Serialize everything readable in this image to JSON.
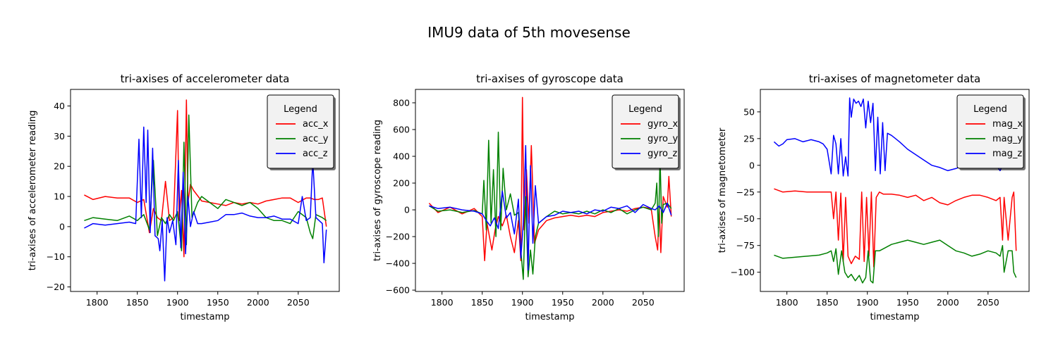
{
  "figure": {
    "title": "IMU9 data of 5th movesense"
  },
  "chart_data": [
    {
      "type": "line",
      "title": "tri-axises of accelerometer data",
      "xlabel": "timestamp",
      "ylabel": "tri-axises of accelerometer reading",
      "xlim": [
        1767,
        2101
      ],
      "ylim": [
        -21.5,
        45.5
      ],
      "xticks": [
        1800,
        1850,
        1900,
        1950,
        2000,
        2050
      ],
      "yticks": [
        -20,
        -10,
        0,
        10,
        20,
        30,
        40
      ],
      "legend": {
        "title": "Legend",
        "position": "upper-right"
      },
      "series": [
        {
          "name": "acc_x",
          "color": "#ff0000",
          "x": [
            1784,
            1795,
            1810,
            1825,
            1840,
            1850,
            1858,
            1865,
            1870,
            1875,
            1880,
            1885,
            1890,
            1895,
            1900,
            1902,
            1905,
            1908,
            1911,
            1913,
            1916,
            1920,
            1930,
            1940,
            1950,
            1960,
            1970,
            1980,
            1990,
            2000,
            2010,
            2020,
            2030,
            2040,
            2050,
            2060,
            2065,
            2070,
            2075,
            2080,
            2085
          ],
          "y": [
            10.5,
            9,
            10,
            9.5,
            9.5,
            8,
            9,
            -2,
            6,
            3,
            2,
            15,
            2,
            3,
            38.5,
            2,
            12,
            -10,
            42,
            8,
            14,
            12,
            8.5,
            8,
            7.5,
            7,
            8,
            7.5,
            8,
            7.5,
            8.5,
            9,
            9.5,
            9.5,
            8,
            9.5,
            9.5,
            9,
            9,
            9.5,
            0
          ]
        },
        {
          "name": "acc_y",
          "color": "#008000",
          "x": [
            1784,
            1795,
            1810,
            1825,
            1840,
            1850,
            1858,
            1865,
            1870,
            1875,
            1880,
            1885,
            1890,
            1895,
            1900,
            1905,
            1908,
            1911,
            1914,
            1918,
            1925,
            1930,
            1940,
            1950,
            1960,
            1970,
            1980,
            1990,
            2000,
            2010,
            2020,
            2030,
            2040,
            2050,
            2060,
            2065,
            2068,
            2072,
            2080,
            2085
          ],
          "y": [
            2,
            3,
            2.5,
            2,
            3.5,
            2,
            4,
            -1,
            22,
            -3,
            3,
            1,
            4,
            2,
            5,
            -8,
            28,
            -6,
            37,
            3,
            8,
            10,
            8,
            6,
            9,
            8,
            7,
            8,
            6,
            3,
            2,
            2,
            1,
            5,
            3,
            -2,
            -4,
            4,
            3,
            2
          ]
        },
        {
          "name": "acc_z",
          "color": "#0000ff",
          "x": [
            1784,
            1795,
            1810,
            1825,
            1840,
            1848,
            1852,
            1855,
            1858,
            1861,
            1863,
            1866,
            1869,
            1872,
            1876,
            1878,
            1881,
            1884,
            1887,
            1890,
            1894,
            1898,
            1901,
            1904,
            1907,
            1910,
            1913,
            1916,
            1920,
            1925,
            1930,
            1940,
            1950,
            1960,
            1970,
            1980,
            1990,
            2000,
            2010,
            2020,
            2030,
            2040,
            2050,
            2055,
            2060,
            2065,
            2068,
            2072,
            2080,
            2082,
            2085
          ],
          "y": [
            -0.5,
            1,
            0.5,
            1,
            1.5,
            1,
            29,
            3,
            33,
            8,
            32,
            -2,
            26,
            -3,
            -4,
            -8,
            2,
            -18,
            3,
            -2,
            2,
            -6,
            22,
            -7,
            18,
            -9,
            10,
            0,
            5,
            1,
            1,
            1.5,
            2,
            4,
            4,
            4.5,
            3.5,
            3,
            3,
            3.5,
            2.5,
            2.5,
            1,
            10,
            2,
            3,
            22,
            3,
            1,
            -12,
            -1
          ]
        }
      ]
    },
    {
      "type": "line",
      "title": "tri-axises of gyroscope data",
      "xlabel": "timestamp",
      "ylabel": "tri-axises of gyroscope reading",
      "xlim": [
        1767,
        2101
      ],
      "ylim": [
        -610,
        900
      ],
      "xticks": [
        1800,
        1850,
        1900,
        1950,
        2000,
        2050
      ],
      "yticks": [
        -600,
        -400,
        -200,
        0,
        200,
        400,
        600,
        800
      ],
      "legend": {
        "title": "Legend",
        "position": "upper-right"
      },
      "series": [
        {
          "name": "gyro_x",
          "color": "#ff0000",
          "x": [
            1784,
            1795,
            1810,
            1825,
            1840,
            1850,
            1853,
            1856,
            1859,
            1862,
            1866,
            1870,
            1875,
            1880,
            1885,
            1890,
            1895,
            1898,
            1900,
            1902,
            1905,
            1908,
            1911,
            1915,
            1920,
            1930,
            1940,
            1950,
            1960,
            1970,
            1980,
            1990,
            2000,
            2010,
            2020,
            2030,
            2040,
            2050,
            2060,
            2065,
            2068,
            2070,
            2072,
            2075,
            2080,
            2082,
            2085
          ],
          "y": [
            50,
            -20,
            20,
            -30,
            10,
            -50,
            -380,
            -100,
            -200,
            -300,
            -150,
            -50,
            -120,
            -40,
            -200,
            -320,
            -80,
            -380,
            840,
            -150,
            300,
            -100,
            480,
            -250,
            -150,
            -80,
            -60,
            -50,
            -40,
            -50,
            -40,
            -50,
            -20,
            -10,
            0,
            -10,
            10,
            20,
            10,
            -200,
            -300,
            20,
            -320,
            100,
            20,
            250,
            -50
          ]
        },
        {
          "name": "gyro_y",
          "color": "#008000",
          "x": [
            1784,
            1795,
            1810,
            1825,
            1840,
            1850,
            1852,
            1855,
            1858,
            1861,
            1864,
            1867,
            1870,
            1873,
            1876,
            1880,
            1885,
            1890,
            1895,
            1898,
            1901,
            1904,
            1907,
            1910,
            1913,
            1916,
            1920,
            1930,
            1940,
            1950,
            1960,
            1970,
            1980,
            1990,
            2000,
            2010,
            2020,
            2030,
            2040,
            2050,
            2060,
            2065,
            2067,
            2069,
            2071,
            2073,
            2075,
            2080,
            2085
          ],
          "y": [
            30,
            -10,
            0,
            -20,
            -5,
            -30,
            220,
            -150,
            520,
            -100,
            300,
            -200,
            580,
            -150,
            310,
            0,
            120,
            -40,
            -20,
            -300,
            -520,
            100,
            -500,
            -300,
            -480,
            -200,
            -100,
            -50,
            -10,
            -30,
            -20,
            -30,
            -10,
            -30,
            0,
            -20,
            10,
            -30,
            0,
            20,
            0,
            50,
            200,
            -200,
            400,
            -100,
            40,
            50,
            10
          ]
        },
        {
          "name": "gyro_z",
          "color": "#0000ff",
          "x": [
            1784,
            1795,
            1810,
            1825,
            1840,
            1850,
            1855,
            1860,
            1865,
            1870,
            1875,
            1880,
            1885,
            1890,
            1895,
            1898,
            1901,
            1904,
            1907,
            1910,
            1913,
            1916,
            1920,
            1930,
            1940,
            1950,
            1960,
            1970,
            1980,
            1990,
            2000,
            2010,
            2020,
            2030,
            2040,
            2050,
            2060,
            2065,
            2070,
            2075,
            2080,
            2085
          ],
          "y": [
            30,
            10,
            20,
            0,
            -10,
            -30,
            -80,
            -120,
            -60,
            -140,
            140,
            -60,
            -20,
            -180,
            80,
            -360,
            -100,
            480,
            -450,
            330,
            -250,
            180,
            -100,
            -50,
            -40,
            -10,
            -20,
            -10,
            -30,
            0,
            -10,
            20,
            10,
            30,
            -20,
            40,
            10,
            0,
            30,
            -20,
            50,
            -40
          ]
        }
      ]
    },
    {
      "type": "line",
      "title": "tri-axises of magnetometer data",
      "xlabel": "timestamp",
      "ylabel": "tri-axises of magnetometer",
      "xlim": [
        1767,
        2101
      ],
      "ylim": [
        -118,
        71
      ],
      "xticks": [
        1800,
        1850,
        1900,
        1950,
        2000,
        2050
      ],
      "yticks": [
        -100,
        -75,
        -50,
        -25,
        0,
        25,
        50
      ],
      "legend": {
        "title": "Legend",
        "position": "upper-right"
      },
      "series": [
        {
          "name": "mag_x",
          "color": "#ff0000",
          "x": [
            1784,
            1795,
            1810,
            1825,
            1840,
            1850,
            1855,
            1858,
            1861,
            1864,
            1867,
            1870,
            1873,
            1876,
            1880,
            1885,
            1890,
            1893,
            1896,
            1899,
            1902,
            1905,
            1908,
            1911,
            1915,
            1920,
            1930,
            1940,
            1950,
            1960,
            1970,
            1980,
            1990,
            2000,
            2010,
            2020,
            2030,
            2040,
            2050,
            2060,
            2065,
            2068,
            2070,
            2075,
            2080,
            2082,
            2085
          ],
          "y": [
            -22,
            -25,
            -24,
            -25,
            -25,
            -25,
            -25,
            -50,
            -25,
            -70,
            -26,
            -90,
            -30,
            -85,
            -92,
            -85,
            -88,
            -25,
            -90,
            -30,
            -85,
            -25,
            -95,
            -30,
            -25,
            -27,
            -27,
            -28,
            -30,
            -28,
            -33,
            -30,
            -35,
            -37,
            -33,
            -30,
            -28,
            -28,
            -30,
            -33,
            -30,
            -70,
            -30,
            -70,
            -30,
            -25,
            -80
          ]
        },
        {
          "name": "mag_y",
          "color": "#008000",
          "x": [
            1784,
            1795,
            1810,
            1825,
            1840,
            1850,
            1855,
            1858,
            1861,
            1864,
            1868,
            1872,
            1876,
            1880,
            1885,
            1890,
            1894,
            1898,
            1901,
            1904,
            1907,
            1910,
            1915,
            1920,
            1930,
            1940,
            1950,
            1960,
            1970,
            1980,
            1990,
            2000,
            2010,
            2020,
            2030,
            2040,
            2050,
            2060,
            2065,
            2068,
            2070,
            2075,
            2080,
            2082,
            2085
          ],
          "y": [
            -84,
            -87,
            -86,
            -85,
            -84,
            -82,
            -80,
            -90,
            -78,
            -102,
            -80,
            -100,
            -105,
            -102,
            -108,
            -103,
            -110,
            -105,
            -80,
            -108,
            -110,
            -80,
            -80,
            -78,
            -74,
            -72,
            -70,
            -72,
            -74,
            -72,
            -70,
            -75,
            -80,
            -82,
            -85,
            -83,
            -80,
            -82,
            -85,
            -75,
            -100,
            -80,
            -80,
            -100,
            -105
          ]
        },
        {
          "name": "mag_z",
          "color": "#0000ff",
          "x": [
            1784,
            1790,
            1795,
            1800,
            1810,
            1820,
            1830,
            1840,
            1845,
            1850,
            1855,
            1858,
            1861,
            1864,
            1867,
            1870,
            1873,
            1876,
            1878,
            1880,
            1883,
            1886,
            1889,
            1892,
            1895,
            1898,
            1901,
            1904,
            1907,
            1910,
            1913,
            1916,
            1919,
            1922,
            1925,
            1930,
            1940,
            1950,
            1960,
            1970,
            1980,
            1990,
            2000,
            2010,
            2020,
            2030,
            2040,
            2050,
            2060,
            2065,
            2068,
            2072,
            2080,
            2083,
            2085
          ],
          "y": [
            22,
            18,
            20,
            24,
            25,
            22,
            24,
            22,
            20,
            15,
            -8,
            28,
            20,
            -8,
            25,
            -10,
            8,
            -10,
            63,
            45,
            62,
            58,
            60,
            55,
            62,
            35,
            60,
            40,
            58,
            -5,
            45,
            -8,
            40,
            -5,
            30,
            28,
            22,
            15,
            10,
            5,
            0,
            -2,
            -5,
            -3,
            0,
            5,
            2,
            5,
            0,
            -5,
            0,
            -2,
            5,
            60,
            0
          ]
        }
      ]
    }
  ]
}
